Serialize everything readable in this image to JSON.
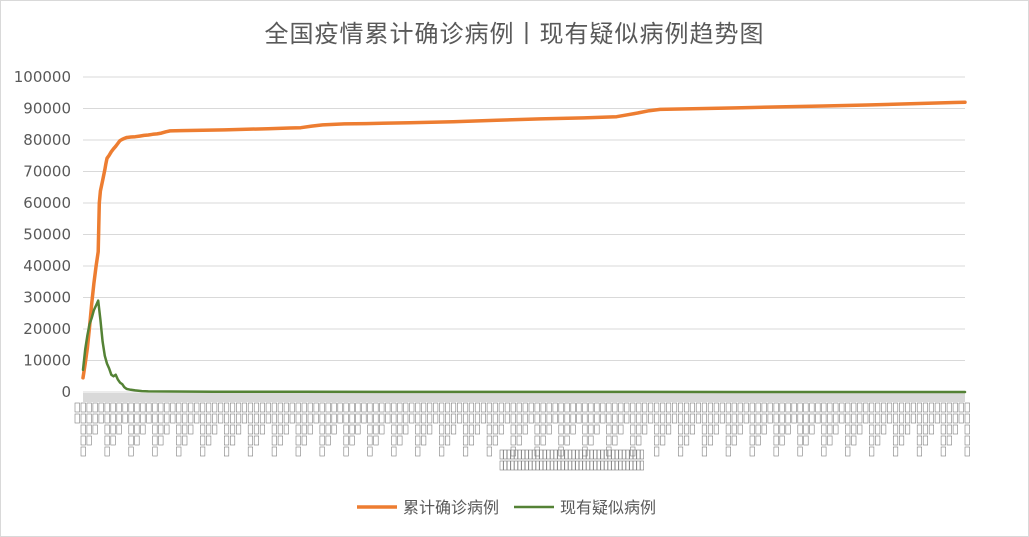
{
  "chart_data": {
    "type": "line",
    "title": "全国疫情累计确诊病例丨现有疑似病例趋势图",
    "xlabel": "",
    "ylabel": "",
    "ylim": [
      0,
      100000
    ],
    "yticks": [
      0,
      10000,
      20000,
      30000,
      40000,
      50000,
      60000,
      70000,
      80000,
      90000,
      100000
    ],
    "grid": true,
    "legend_position": "bottom",
    "x_label_note": "compressed illegible vertical date labels",
    "series": [
      {
        "name": "累计确诊病例",
        "color": "#ED7D31",
        "points": [
          [
            0,
            4500
          ],
          [
            2,
            9000
          ],
          [
            4,
            14000
          ],
          [
            6,
            20500
          ],
          [
            8,
            28000
          ],
          [
            10,
            34500
          ],
          [
            12,
            40000
          ],
          [
            14,
            44500
          ],
          [
            15,
            60000
          ],
          [
            16,
            63800
          ],
          [
            18,
            67100
          ],
          [
            20,
            70500
          ],
          [
            21,
            72500
          ],
          [
            22,
            74200
          ],
          [
            24,
            75100
          ],
          [
            26,
            76300
          ],
          [
            28,
            77200
          ],
          [
            30,
            78000
          ],
          [
            32,
            78900
          ],
          [
            34,
            79800
          ],
          [
            36,
            80200
          ],
          [
            38,
            80500
          ],
          [
            40,
            80800
          ],
          [
            44,
            80950
          ],
          [
            48,
            81050
          ],
          [
            52,
            81250
          ],
          [
            56,
            81450
          ],
          [
            60,
            81600
          ],
          [
            64,
            81800
          ],
          [
            68,
            81950
          ],
          [
            72,
            82200
          ],
          [
            76,
            82600
          ],
          [
            80,
            82900
          ],
          [
            90,
            83000
          ],
          [
            110,
            83100
          ],
          [
            130,
            83200
          ],
          [
            150,
            83400
          ],
          [
            170,
            83600
          ],
          [
            190,
            83800
          ],
          [
            200,
            83900
          ],
          [
            210,
            84400
          ],
          [
            220,
            84800
          ],
          [
            240,
            85100
          ],
          [
            260,
            85200
          ],
          [
            300,
            85500
          ],
          [
            340,
            85800
          ],
          [
            380,
            86300
          ],
          [
            420,
            86700
          ],
          [
            460,
            87000
          ],
          [
            490,
            87400
          ],
          [
            500,
            88000
          ],
          [
            510,
            88600
          ],
          [
            520,
            89300
          ],
          [
            530,
            89700
          ],
          [
            560,
            89900
          ],
          [
            600,
            90200
          ],
          [
            640,
            90500
          ],
          [
            680,
            90800
          ],
          [
            720,
            91100
          ],
          [
            760,
            91500
          ],
          [
            800,
            91900
          ],
          [
            810,
            92000
          ]
        ]
      },
      {
        "name": "现有疑似病例",
        "color": "#548235",
        "points": [
          [
            0,
            7000
          ],
          [
            2,
            13500
          ],
          [
            4,
            18000
          ],
          [
            6,
            21500
          ],
          [
            8,
            23500
          ],
          [
            10,
            26000
          ],
          [
            12,
            27500
          ],
          [
            14,
            29000
          ],
          [
            16,
            23000
          ],
          [
            18,
            16000
          ],
          [
            20,
            11500
          ],
          [
            22,
            9000
          ],
          [
            24,
            7500
          ],
          [
            26,
            5500
          ],
          [
            28,
            5000
          ],
          [
            30,
            5500
          ],
          [
            32,
            4000
          ],
          [
            34,
            3000
          ],
          [
            36,
            2500
          ],
          [
            38,
            1500
          ],
          [
            40,
            1000
          ],
          [
            44,
            700
          ],
          [
            48,
            500
          ],
          [
            54,
            300
          ],
          [
            60,
            200
          ],
          [
            80,
            150
          ],
          [
            120,
            100
          ],
          [
            200,
            60
          ],
          [
            300,
            40
          ],
          [
            400,
            30
          ],
          [
            500,
            20
          ],
          [
            600,
            15
          ],
          [
            810,
            10
          ]
        ]
      }
    ]
  }
}
